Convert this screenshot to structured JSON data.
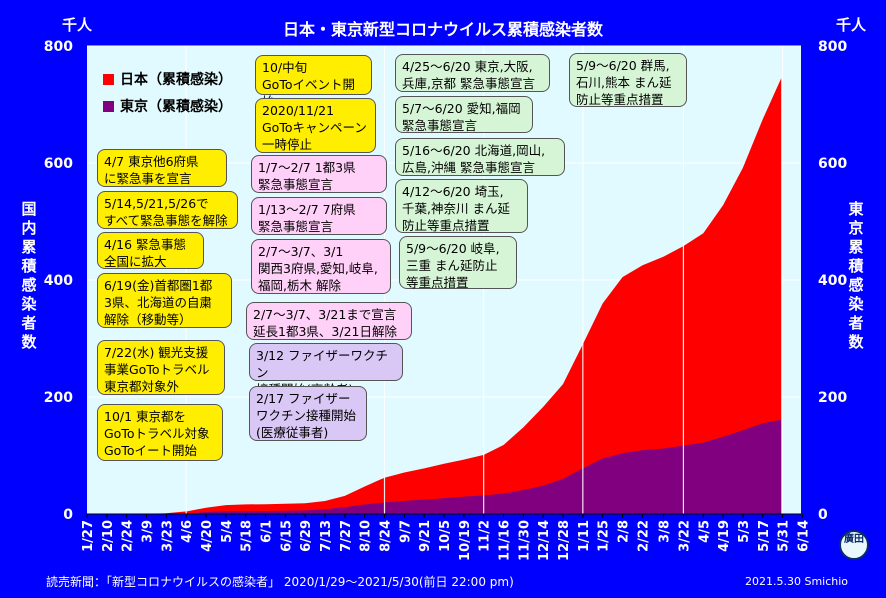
{
  "title": "日本・東京新型コロナウイルス累積感染者数",
  "unit_left": "千人",
  "unit_right": "千人",
  "ylabel_left": "国内累積感染者数",
  "ylabel_right": "東京累積感染者数",
  "source": "読売新聞：「新型コロナウイルスの感染者」 2020/1/29～2021/5/30(前日 22:00 pm)",
  "credit": "2021.5.30 Smichio",
  "stamp": "廣田",
  "notes": {
    "n1": "10/中旬\nGoToイベント開始",
    "n2": "2020/11/21\nGoToキャンペーン\n一時停止",
    "n3": "4/7 東京他6府県\nに緊急事を宣言",
    "n4": "5/14,5/21,5/26で\nすべて緊急事態を解除",
    "n5": "4/16 緊急事態\n全国に拡大",
    "n6": "6/19(金)首都圏1都\n3県、北海道の自粛\n解除（移動等）",
    "n7": "7/22(水) 観光支援\n事業GoToトラベル\n東京都対象外",
    "n8": "10/1 東京都を\nGoToトラベル対象\nGoToイート開始",
    "n9": "1/7～2/7 1都3県\n緊急事態宣言",
    "n10": "1/13～2/7 7府県\n緊急事態宣言",
    "n11": "2/7～3/7、3/1\n関西3府県,愛知,岐阜,\n福岡,栃木 解除",
    "n12": "2/7～3/7、3/21まで宣言\n延長1都3県、3/21日解除",
    "n13": "3/12 ファイザーワクチン\n接種開始(高齢者)",
    "n14": "2/17 ファイザー\nワクチン接種開始\n(医療従事者)",
    "n15": "4/25～6/20 東京,大阪,\n兵庫,京都 緊急事態宣言",
    "n16": "5/7～6/20 愛知,福岡\n緊急事態宣言",
    "n17": "5/16～6/20 北海道,岡山,\n広島,沖縄 緊急事態宣言",
    "n18": "4/12～6/20 埼玉,\n千葉,神奈川 まん延\n防止等重点措置",
    "n19": "5/9～6/20 岐阜,\n三重 まん延防止\n等重点措置",
    "n20": "5/9～6/20 群馬,\n石川,熊本 まん延\n防止等重点措置"
  },
  "colors": {
    "background": "#0000ff",
    "plot_bg": "#e0faff",
    "japan": "#ff0000",
    "tokyo": "#800080",
    "grid": "#ffffff"
  },
  "chart_data": {
    "type": "area",
    "title": "日本・東京新型コロナウイルス累積感染者数",
    "ylabel_left": "国内累積感染者数",
    "ylabel_right": "東京累積感染者数",
    "yunit": "千人",
    "ylim": [
      0,
      800
    ],
    "yticks": [
      0,
      200,
      400,
      600,
      800
    ],
    "x_ticks": [
      "1/27",
      "2/10",
      "2/24",
      "3/9",
      "3/23",
      "4/6",
      "4/20",
      "5/4",
      "5/18",
      "6/1",
      "6/15",
      "6/29",
      "7/13",
      "7/27",
      "8/10",
      "8/24",
      "9/7",
      "9/21",
      "10/5",
      "10/19",
      "11/2",
      "11/16",
      "11/30",
      "12/14",
      "12/28",
      "1/11",
      "1/25",
      "2/8",
      "2/22",
      "3/8",
      "3/22",
      "4/5",
      "4/19",
      "5/3",
      "5/17",
      "5/31",
      "6/14"
    ],
    "x_range_days": [
      0,
      504
    ],
    "legend_position": "top-left",
    "vertical_markers": [
      "4/6",
      "8/24",
      "11/2",
      "1/11",
      "3/22",
      "5/31"
    ],
    "series": [
      {
        "name": "日本（累積感染）",
        "color": "#ff0000",
        "x": [
          "1/29",
          "3/1",
          "3/22",
          "4/7",
          "4/20",
          "5/4",
          "5/18",
          "6/1",
          "6/15",
          "6/29",
          "7/13",
          "7/27",
          "8/10",
          "8/24",
          "9/7",
          "9/21",
          "10/5",
          "10/19",
          "11/2",
          "11/16",
          "11/30",
          "12/14",
          "12/28",
          "1/11",
          "1/25",
          "2/8",
          "2/22",
          "3/8",
          "3/22",
          "4/5",
          "4/19",
          "5/3",
          "5/17",
          "5/30"
        ],
        "values": [
          0,
          0.3,
          1.1,
          4.8,
          10.8,
          15.2,
          16.4,
          16.8,
          17.4,
          18.4,
          22.3,
          31,
          47,
          62,
          71,
          78,
          86,
          93,
          101,
          118,
          148,
          183,
          222,
          290,
          360,
          405,
          425,
          440,
          458,
          480,
          528,
          592,
          675,
          745
        ]
      },
      {
        "name": "東京（累積感染）",
        "color": "#800080",
        "x": [
          "1/29",
          "3/1",
          "3/22",
          "4/7",
          "4/20",
          "5/4",
          "5/18",
          "6/1",
          "6/15",
          "6/29",
          "7/13",
          "7/27",
          "8/10",
          "8/24",
          "9/7",
          "9/21",
          "10/5",
          "10/19",
          "11/2",
          "11/16",
          "11/30",
          "12/14",
          "12/28",
          "1/11",
          "1/25",
          "2/8",
          "2/22",
          "3/8",
          "3/22",
          "4/5",
          "4/19",
          "5/3",
          "5/17",
          "5/30"
        ],
        "values": [
          0,
          0.1,
          0.3,
          1.3,
          3.3,
          4.6,
          5.1,
          5.2,
          5.6,
          6.2,
          8.2,
          11.6,
          16.2,
          19.8,
          22.4,
          24.6,
          27,
          29.7,
          31.6,
          35,
          41,
          48.5,
          60,
          78,
          95,
          104,
          109,
          112,
          117,
          122,
          132,
          143,
          155,
          161
        ]
      }
    ]
  }
}
